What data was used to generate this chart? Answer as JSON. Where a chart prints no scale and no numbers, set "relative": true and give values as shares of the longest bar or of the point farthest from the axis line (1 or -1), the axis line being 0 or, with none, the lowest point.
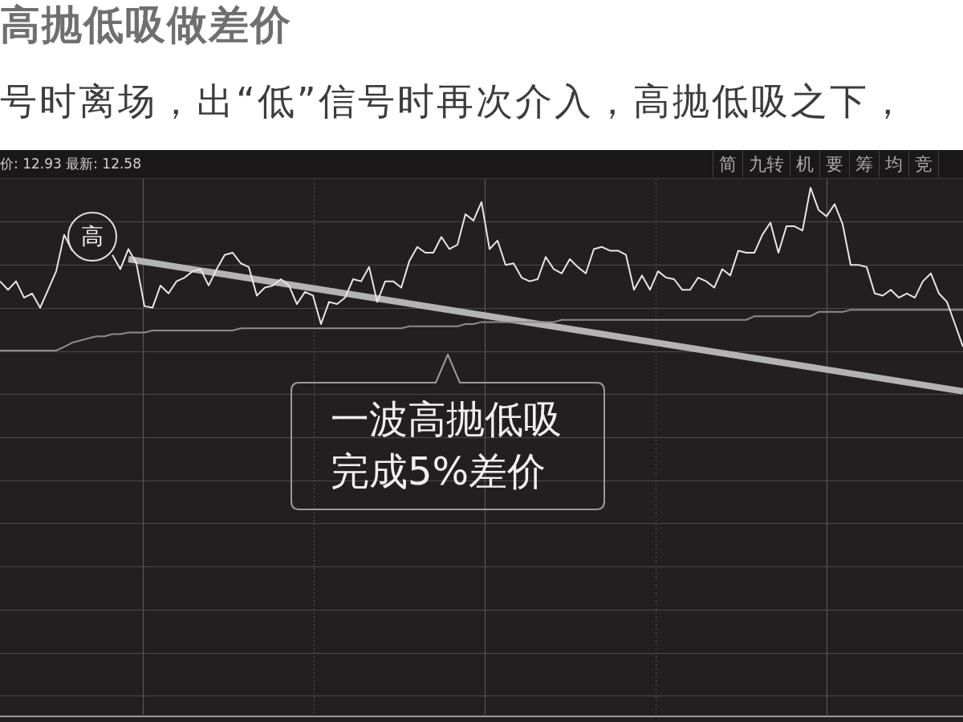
{
  "chart_data": {
    "type": "line",
    "title": "高抛低吸做差价",
    "subtitle": "号时离场，出“低”信号时再次介入，高抛低吸之下，",
    "annotations": [
      "价: 12.93 最新: 12.58",
      "简",
      "九转",
      "机",
      "要",
      "筹",
      "均",
      "竞",
      "一波高抛低吸",
      "完成5%差价",
      "高"
    ],
    "relative": true,
    "grid": true,
    "marker": "none",
    "tick_labels": false,
    "categories": [
      null,
      null,
      null,
      null,
      null,
      null,
      null,
      null,
      null,
      null,
      null,
      null,
      null,
      null,
      null,
      null,
      null,
      null,
      null,
      null,
      null,
      null,
      null,
      null,
      null,
      null,
      null,
      null,
      null,
      null,
      null,
      null,
      null,
      null,
      null,
      null,
      null,
      null,
      null,
      null,
      null,
      null,
      null,
      null,
      null,
      null,
      null,
      null,
      null,
      null,
      null,
      null,
      null,
      null,
      null,
      null,
      null,
      null,
      null,
      null,
      null,
      null,
      null,
      null,
      null,
      null,
      null,
      null,
      null,
      null,
      null,
      null,
      null,
      null,
      null,
      null,
      null,
      null,
      null,
      null,
      null,
      null,
      null,
      null,
      null,
      null,
      null,
      null,
      null,
      null,
      null,
      null,
      null,
      null,
      null,
      null,
      null,
      null,
      null,
      null,
      null,
      null,
      null,
      null,
      null,
      null,
      null,
      null,
      null,
      null,
      null,
      null,
      null,
      null,
      null,
      null,
      null,
      null,
      null,
      null,
      null
    ],
    "series": [
      {
        "color": "#e6e6e6",
        "values": [
          0.823,
          0.807,
          0.823,
          0.792,
          0.8,
          0.773,
          0.807,
          0.842,
          0.911,
          0.881,
          null,
          null,
          null,
          null,
          0.873,
          0.846,
          0.884,
          0.857,
          0.776,
          0.773,
          0.815,
          0.8,
          0.823,
          0.83,
          0.842,
          0.846,
          0.815,
          0.846,
          0.873,
          0.877,
          0.857,
          0.85,
          0.796,
          0.811,
          0.815,
          0.827,
          0.815,
          0.78,
          0.803,
          0.796,
          0.742,
          0.784,
          0.78,
          0.792,
          0.827,
          0.823,
          0.85,
          0.784,
          0.823,
          0.823,
          0.811,
          0.861,
          0.888,
          0.877,
          0.877,
          0.907,
          0.884,
          0.892,
          0.95,
          0.938,
          0.973,
          0.884,
          0.9,
          0.854,
          0.857,
          0.83,
          0.823,
          0.827,
          0.869,
          0.846,
          0.838,
          0.865,
          0.85,
          0.838,
          0.884,
          0.888,
          0.881,
          0.881,
          0.873,
          0.807,
          0.834,
          0.807,
          0.842,
          0.83,
          0.827,
          0.807,
          0.807,
          0.83,
          0.823,
          0.811,
          0.846,
          0.834,
          0.881,
          0.877,
          0.877,
          0.911,
          0.934,
          0.877,
          0.927,
          0.927,
          0.919,
          1,
          0.958,
          0.946,
          0.969,
          0.931,
          0.854,
          0.854,
          0.85,
          0.8,
          0.796,
          0.807,
          0.792,
          0.8,
          0.792,
          0.823,
          0.838,
          0.8,
          0.784,
          0.742,
          0.699
        ]
      },
      {
        "color": "#8c8c8c",
        "values": [
          0.692,
          0.692,
          0.692,
          0.692,
          0.692,
          0.692,
          0.692,
          0.692,
          0.699,
          0.707,
          0.711,
          0.715,
          0.719,
          0.719,
          0.723,
          0.723,
          0.726,
          0.726,
          0.726,
          0.73,
          0.73,
          0.73,
          0.73,
          0.73,
          0.73,
          0.73,
          0.73,
          0.73,
          0.73,
          0.73,
          0.734,
          0.734,
          0.734,
          0.734,
          0.734,
          0.734,
          0.734,
          0.734,
          0.734,
          0.734,
          0.734,
          0.734,
          0.734,
          0.734,
          0.734,
          0.734,
          0.734,
          0.734,
          0.734,
          0.734,
          0.734,
          0.738,
          0.738,
          0.738,
          0.738,
          0.738,
          0.738,
          0.738,
          0.742,
          0.742,
          0.746,
          0.746,
          0.746,
          0.746,
          0.746,
          0.746,
          0.746,
          0.746,
          0.746,
          0.746,
          0.75,
          0.75,
          0.75,
          0.75,
          0.75,
          0.75,
          0.75,
          0.75,
          0.75,
          0.75,
          0.75,
          0.75,
          0.75,
          0.75,
          0.75,
          0.75,
          0.75,
          0.75,
          0.75,
          0.75,
          0.75,
          0.75,
          0.75,
          0.75,
          0.757,
          0.757,
          0.757,
          0.757,
          0.757,
          0.757,
          0.757,
          0.757,
          0.765,
          0.765,
          0.765,
          0.765,
          0.769,
          0.769,
          0.769,
          0.769,
          0.769,
          0.769,
          0.769,
          0.769,
          0.769,
          0.769,
          0.769,
          0.769,
          0.769,
          0.769,
          0.769
        ]
      },
      {
        "type": "line",
        "color": "#b3b3b3",
        "values": [
          null,
          null,
          null,
          null,
          null,
          null,
          null,
          null,
          null,
          null,
          null,
          null,
          null,
          null,
          null,
          null,
          0.865,
          null,
          null,
          null,
          null,
          null,
          null,
          null,
          null,
          null,
          null,
          null,
          null,
          null,
          null,
          null,
          null,
          null,
          null,
          null,
          null,
          null,
          null,
          null,
          null,
          null,
          null,
          null,
          null,
          null,
          null,
          null,
          null,
          null,
          null,
          null,
          null,
          null,
          null,
          null,
          null,
          null,
          null,
          null,
          null,
          null,
          null,
          null,
          null,
          null,
          null,
          null,
          null,
          null,
          null,
          null,
          null,
          null,
          null,
          null,
          null,
          null,
          null,
          null,
          null,
          null,
          null,
          null,
          null,
          null,
          null,
          null,
          null,
          null,
          null,
          null,
          null,
          null,
          null,
          null,
          null,
          null,
          null,
          null,
          null,
          null,
          null,
          null,
          null,
          null,
          null,
          null,
          null,
          null,
          null,
          null,
          null,
          null,
          null,
          null,
          null,
          null,
          null,
          null,
          0.615
        ]
      }
    ]
  }
}
